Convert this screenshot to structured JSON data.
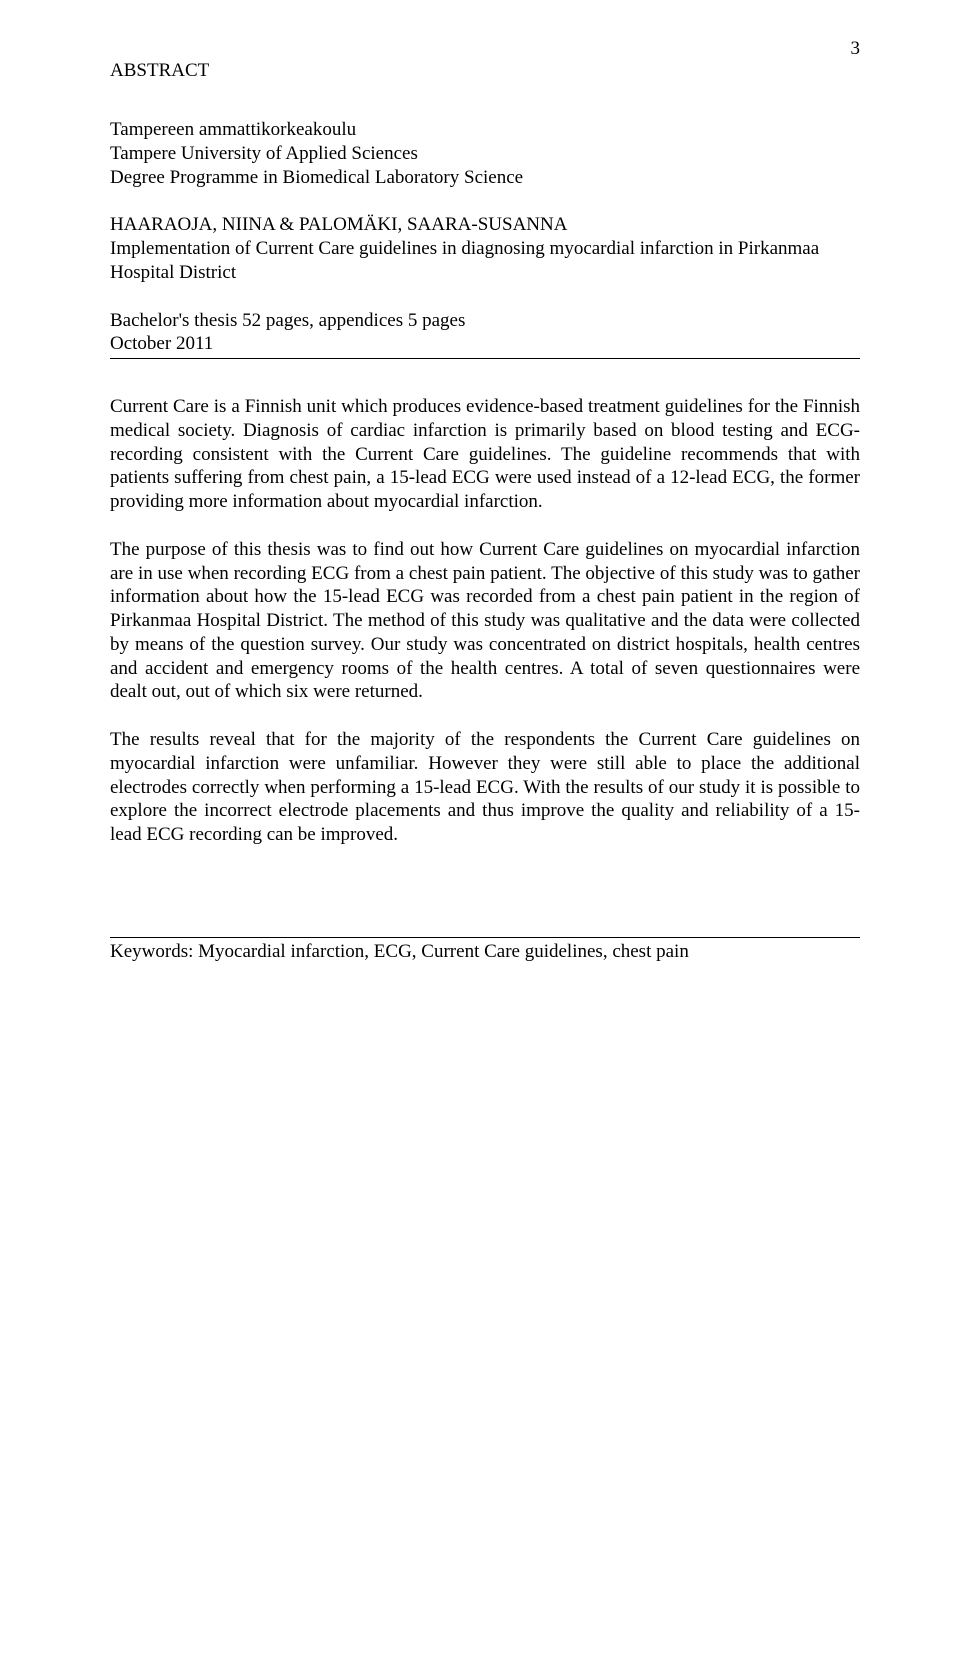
{
  "pageNumber": "3",
  "heading": "ABSTRACT",
  "institution": {
    "line1": "Tampereen ammattikorkeakoulu",
    "line2": "Tampere University of Applied Sciences",
    "line3": "Degree Programme in Biomedical Laboratory Science"
  },
  "authors": "HAARAOJA, NIINA & PALOMÄKI, SAARA-SUSANNA",
  "title": "Implementation of Current Care guidelines in diagnosing myocardial infarction in Pirkanmaa Hospital District",
  "thesisInfo": {
    "line1": "Bachelor's thesis 52 pages, appendices 5 pages",
    "line2": "October 2011"
  },
  "paragraphs": {
    "p1": "Current Care is a Finnish unit which produces evidence-based treatment guidelines for the Finnish medical society. Diagnosis of cardiac infarction is primarily based on blood testing and ECG-recording consistent with the Current Care guidelines. The guideline recommends that with patients suffering from chest pain, a 15-lead ECG were used instead of a 12-lead ECG, the former providing more information about myocardial infarction.",
    "p2": "The purpose of this thesis was to find out how Current Care guidelines on myocardial infarction are in use when recording ECG from a chest pain patient. The objective of this study was to gather information about how the 15-lead ECG was recorded from a chest pain patient in the region of Pirkanmaa Hospital District. The method of this study was qualitative and the data were collected by means of the question survey. Our study was concentrated on district hospitals, health centres and accident and emergency rooms of the health centres. A total of seven questionnaires were dealt out, out of which six were returned.",
    "p3": "The results reveal that for the majority of the respondents the Current Care guidelines on myocardial infarction were unfamiliar. However they were still able to place the additional electrodes correctly when performing a 15-lead ECG. With the results of our study it is possible to explore the incorrect electrode placements and thus improve the quality and reliability of a 15-lead ECG recording can be improved."
  },
  "keywords": "Keywords: Myocardial infarction, ECG, Current Care guidelines, chest pain"
}
